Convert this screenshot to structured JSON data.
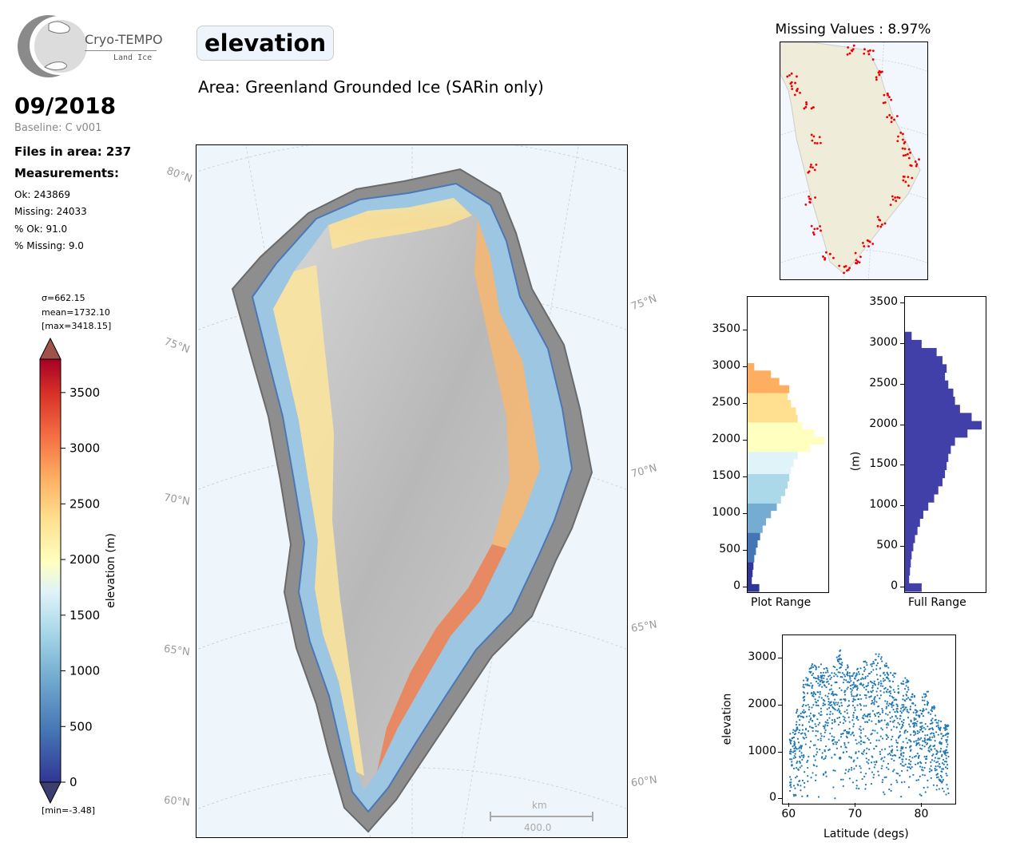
{
  "logo": {
    "title": "Cryo-TEMPO",
    "subtitle": "Land Ice"
  },
  "date": "09/2018",
  "baseline": "Baseline: C v001",
  "files_in_area": "Files in area: 237",
  "measurements_heading": "Measurements:",
  "stats": [
    "Ok: 243869",
    "Missing: 24033",
    "% Ok: 91.0",
    "% Missing: 9.0"
  ],
  "title": "elevation",
  "area": "Area: Greenland Grounded Ice (SARin only)",
  "colorbar": {
    "sigma": "σ=662.15",
    "mean": "mean=1732.10",
    "max": "[max=3418.15]",
    "min": "[min=-3.48]",
    "label": "elevation (m)",
    "ticks": [
      "0",
      "500",
      "1000",
      "1500",
      "2000",
      "2500",
      "3000",
      "3500"
    ]
  },
  "map": {
    "lat_labels_left": [
      "80°N",
      "75°N",
      "70°N",
      "65°N",
      "60°N"
    ],
    "lat_labels_right": [
      "75°N",
      "70°N",
      "65°N",
      "60°N"
    ],
    "scalebar_unit": "km",
    "scalebar_value": "400.0"
  },
  "missing_values": "Missing Values : 8.97%",
  "colors": {
    "map_bg": "#eef6fc",
    "land": "#efedd9",
    "missing_marker": "#ee0000",
    "full_hist": "#4040a8",
    "scatter": "#1f77b4"
  },
  "chart_data": [
    {
      "type": "bar",
      "orientation": "horizontal",
      "xlabel": "Plot Range",
      "ylabel": "",
      "ylim": [
        -60,
        3950
      ],
      "ticks": [
        0,
        500,
        1000,
        1500,
        2000,
        2500,
        3000,
        3500
      ],
      "bin_centers": [
        0,
        100,
        200,
        300,
        400,
        500,
        600,
        700,
        800,
        900,
        1000,
        1100,
        1200,
        1300,
        1400,
        1500,
        1600,
        1700,
        1800,
        1900,
        2000,
        2100,
        2200,
        2300,
        2400,
        2500,
        2600,
        2700,
        2800,
        2900,
        3000
      ],
      "values": [
        14,
        5,
        6,
        7,
        8,
        10,
        12,
        15,
        18,
        22,
        28,
        35,
        40,
        45,
        48,
        50,
        52,
        55,
        60,
        75,
        92,
        80,
        66,
        60,
        58,
        52,
        48,
        50,
        38,
        28,
        8
      ]
    },
    {
      "type": "bar",
      "orientation": "horizontal",
      "xlabel": "Full Range",
      "ylabel": "(m)",
      "ylim": [
        -60,
        3580
      ],
      "ticks": [
        0,
        500,
        1000,
        1500,
        2000,
        2500,
        3000,
        3500
      ],
      "bin_centers": [
        0,
        100,
        200,
        300,
        400,
        500,
        600,
        700,
        800,
        900,
        1000,
        1100,
        1200,
        1300,
        1400,
        1500,
        1600,
        1700,
        1800,
        1900,
        2000,
        2100,
        2200,
        2300,
        2400,
        2500,
        2600,
        2700,
        2800,
        2900,
        3000,
        3100
      ],
      "values": [
        20,
        5,
        6,
        7,
        8,
        10,
        12,
        15,
        18,
        22,
        28,
        35,
        40,
        45,
        48,
        50,
        52,
        55,
        60,
        75,
        92,
        80,
        66,
        60,
        58,
        52,
        48,
        50,
        45,
        38,
        20,
        8
      ]
    },
    {
      "type": "scatter",
      "xlabel": "Latitude (degs)",
      "ylabel": "elevation",
      "xlim": [
        59,
        85
      ],
      "ylim": [
        -100,
        3500
      ],
      "xticks": [
        60,
        70,
        80
      ],
      "yticks": [
        0,
        1000,
        2000,
        3000
      ],
      "envelope": {
        "lat": [
          60,
          61,
          62,
          63,
          64,
          65,
          66,
          67,
          68,
          69,
          70,
          71,
          72,
          73,
          74,
          75,
          76,
          77,
          78,
          79,
          80,
          81,
          82,
          83
        ],
        "max_elevation": [
          1500,
          2000,
          2600,
          2900,
          2950,
          2800,
          2850,
          3200,
          2950,
          2700,
          2800,
          2950,
          3000,
          3100,
          2950,
          2700,
          2500,
          2600,
          2300,
          1900,
          2300,
          2000,
          1700,
          1600
        ],
        "min_elevation": [
          0,
          0,
          0,
          0,
          0,
          0,
          0,
          0,
          0,
          0,
          0,
          0,
          0,
          0,
          0,
          0,
          0,
          0,
          0,
          0,
          0,
          0,
          0,
          0
        ]
      }
    }
  ]
}
